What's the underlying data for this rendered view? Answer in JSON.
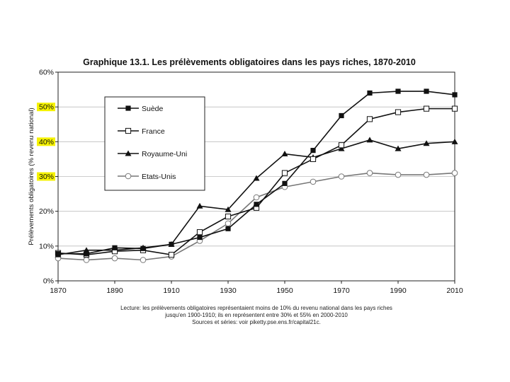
{
  "chart_data": {
    "type": "line",
    "title": "Graphique 13.1. Les prélèvements obligatoires dans les pays riches, 1870-2010",
    "ylabel": "Prélèvements obligatoires (% revenu national)",
    "xlabel": "",
    "xlim": [
      1870,
      2010
    ],
    "ylim": [
      0,
      60
    ],
    "x_ticks": [
      "1870",
      "1890",
      "1910",
      "1930",
      "1950",
      "1970",
      "1990",
      "2010"
    ],
    "y_ticks": [
      "0%",
      "10%",
      "20%",
      "30%",
      "40%",
      "50%",
      "60%"
    ],
    "highlighted_y_ticks": [
      "30%",
      "40%",
      "50%"
    ],
    "highlight_color": "#f5f200",
    "x": [
      1870,
      1880,
      1890,
      1900,
      1910,
      1920,
      1930,
      1940,
      1950,
      1960,
      1970,
      1980,
      1990,
      2000,
      2010
    ],
    "series": [
      {
        "name": "Suède",
        "marker": "square-filled",
        "color": "#111111",
        "values": [
          7.8,
          7.8,
          9.5,
          9.3,
          10.5,
          12.5,
          15,
          22,
          28,
          37.5,
          47.5,
          54,
          54.5,
          54.5,
          53.5
        ]
      },
      {
        "name": "France",
        "marker": "square-open",
        "color": "#111111",
        "values": [
          8,
          7.5,
          8.5,
          8.8,
          7.5,
          14,
          18.5,
          21,
          31,
          35,
          39,
          46.5,
          48.5,
          49.5,
          49.5
        ]
      },
      {
        "name": "Royaume-Uni",
        "marker": "triangle-filled",
        "color": "#111111",
        "values": [
          7.5,
          8.8,
          8.8,
          9.5,
          10.5,
          21.5,
          20.5,
          29.5,
          36.5,
          35.5,
          38,
          40.5,
          38,
          39.5,
          40
        ]
      },
      {
        "name": "Etats-Unis",
        "marker": "circle-open",
        "color": "#777777",
        "values": [
          6.5,
          6,
          6.5,
          6,
          7,
          11.5,
          16.5,
          24,
          27,
          28.5,
          30,
          31,
          30.5,
          30.5,
          31
        ]
      }
    ],
    "legend_position": "top-left",
    "notes": [
      "Lecture: les prélèvements obligatoires représentaient moins de 10% du revenu national dans les pays riches",
      "jusqu'en 1900-1910; ils en représentent entre 30% et 55% en 2000-2010",
      "Sources et séries: voir piketty.pse.ens.fr/capital21c."
    ]
  }
}
